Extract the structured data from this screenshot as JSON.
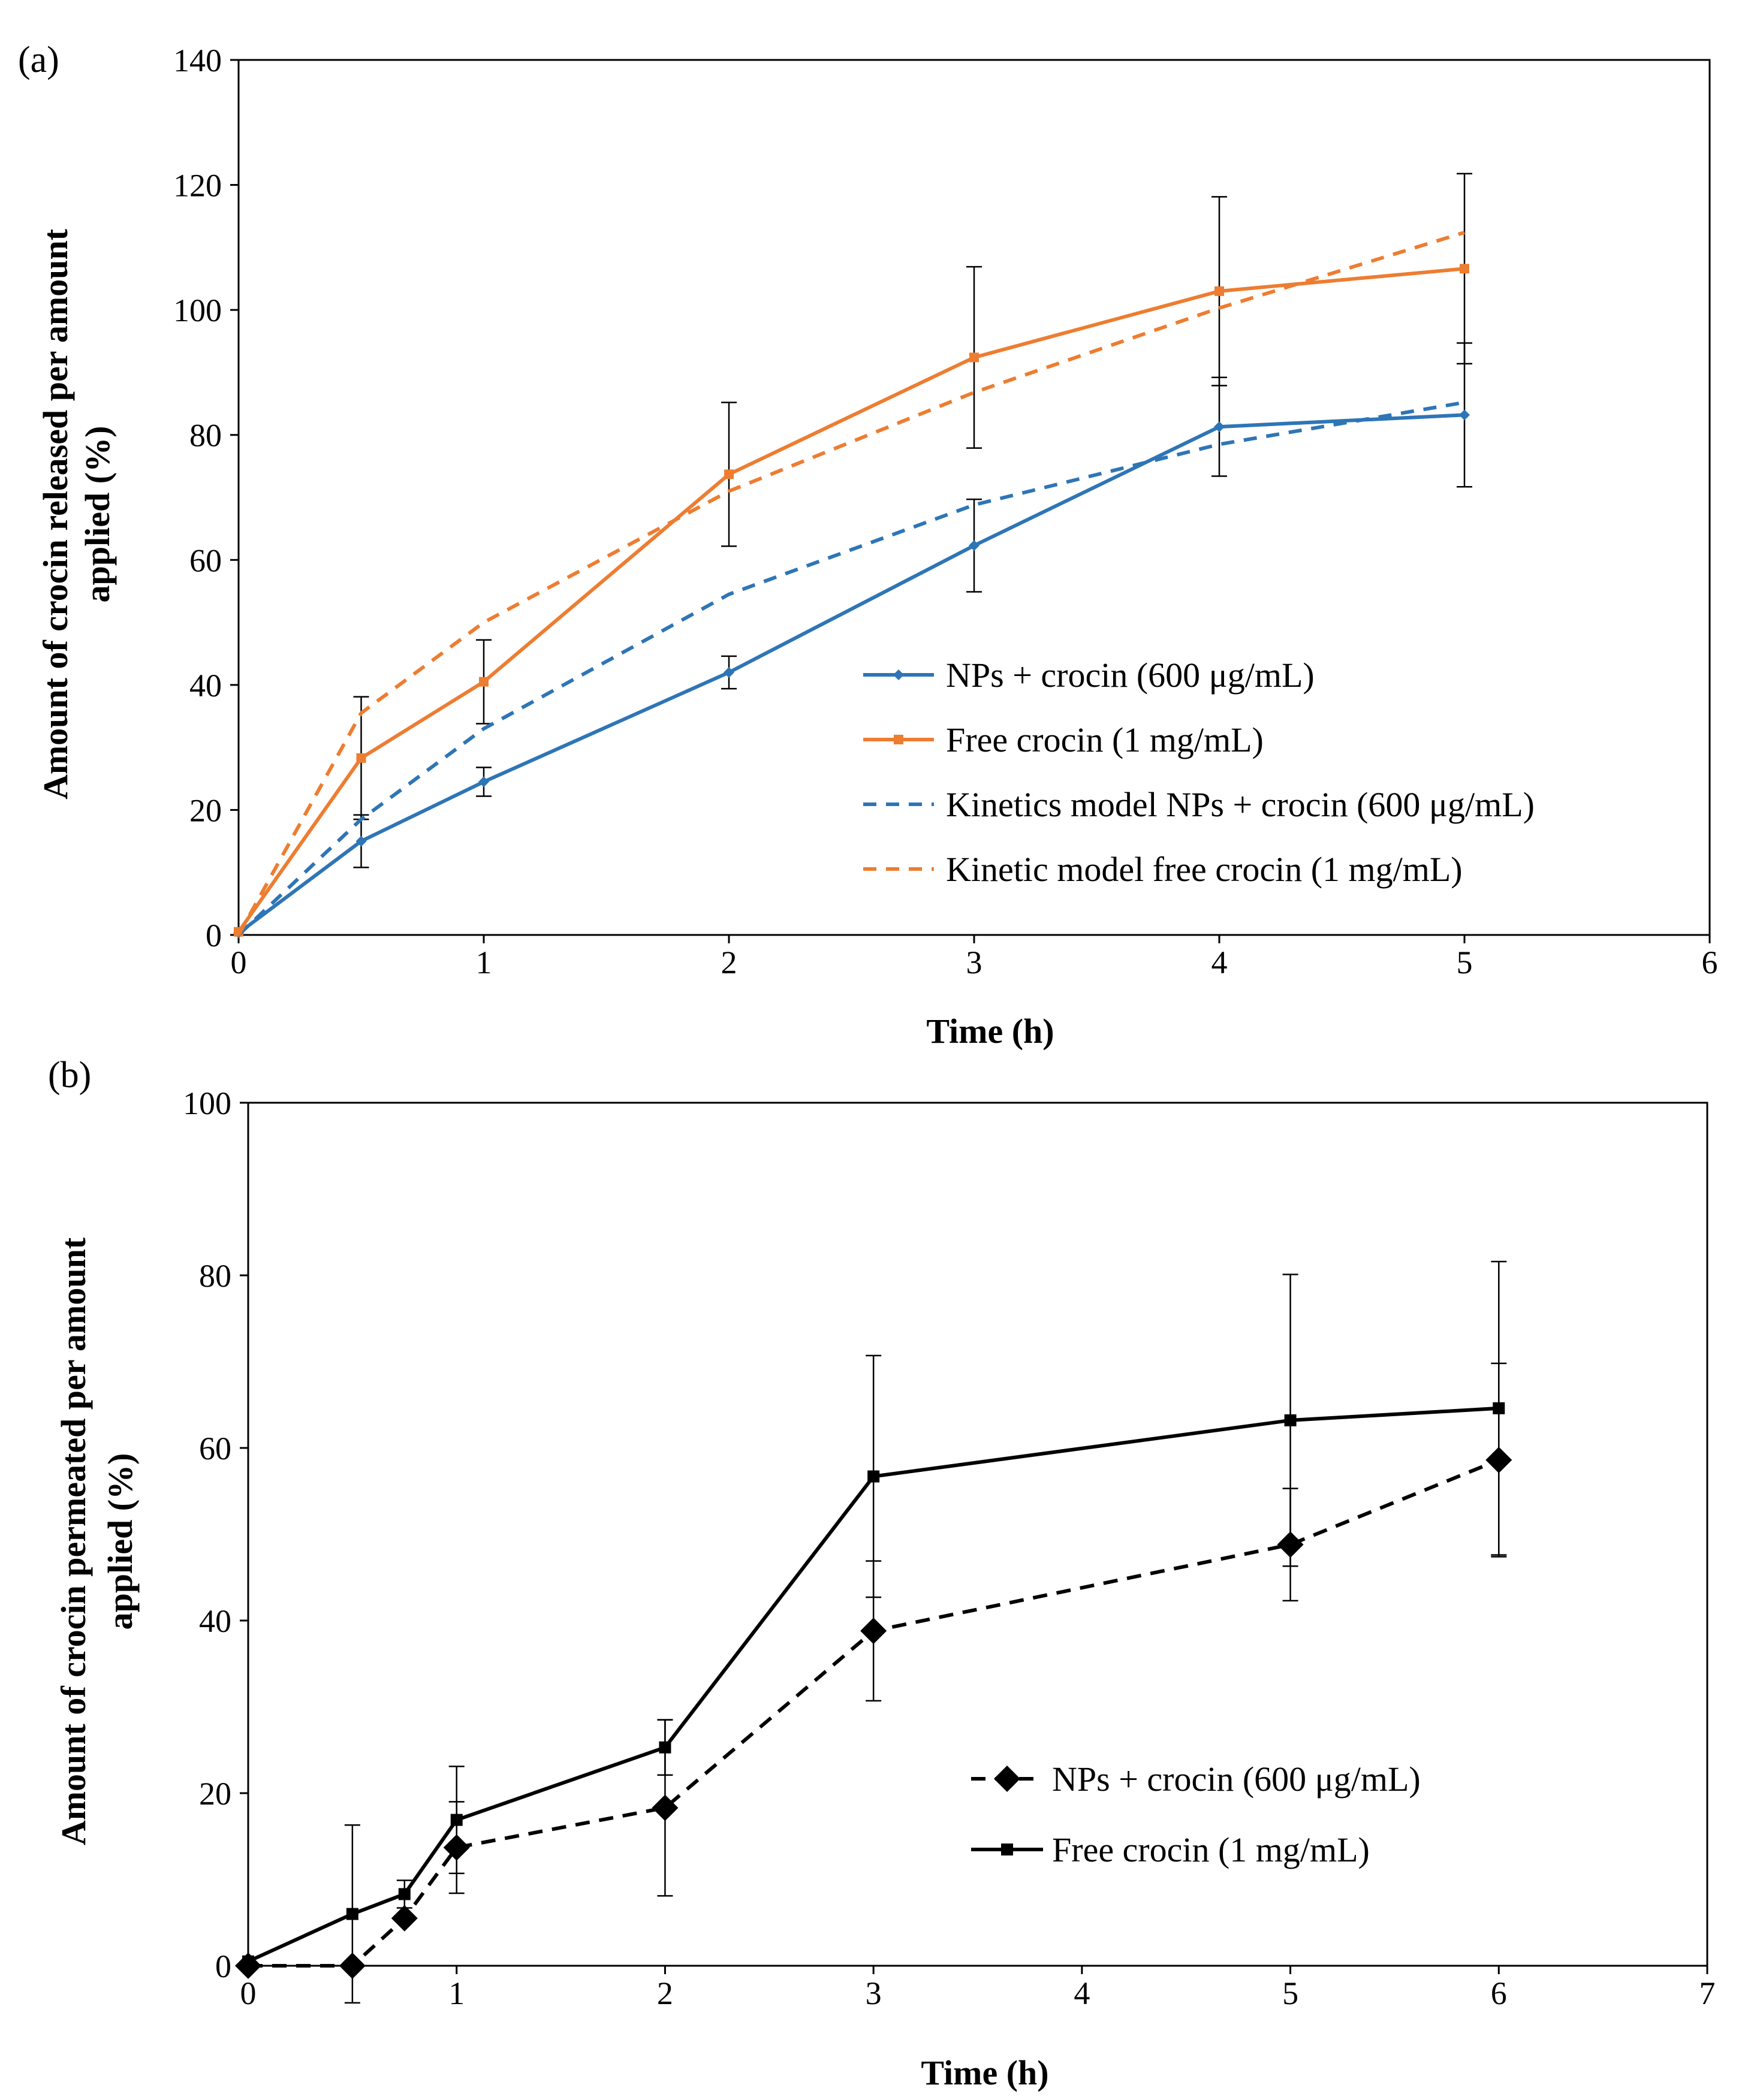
{
  "chart_data": [
    {
      "panel_label": "(a)",
      "type": "line",
      "xlabel": "Time (h)",
      "ylabel_lines": [
        "Amount of crocin released per amount",
        "applied (%)"
      ],
      "xlim": [
        0,
        6
      ],
      "ylim": [
        0,
        140
      ],
      "xticks": [
        0,
        1,
        2,
        3,
        4,
        5,
        6
      ],
      "yticks": [
        0,
        20,
        40,
        60,
        80,
        100,
        120,
        140
      ],
      "xtick_labels": [
        "0",
        "1",
        "2",
        "3",
        "4",
        "5",
        "6"
      ],
      "ytick_labels": [
        "0",
        "20",
        "40",
        "60",
        "80",
        "100",
        "120",
        "140"
      ],
      "legend_position": "lower-right",
      "series": [
        {
          "name": "NPs + crocin (600 μg/mL)",
          "color": "#2e75b6",
          "style": "solid",
          "marker": "diamond-small",
          "x": [
            0,
            0.5,
            1,
            2,
            3,
            4,
            5
          ],
          "y": [
            0.3,
            15,
            24.5,
            42,
            62.3,
            81.3,
            83.2
          ],
          "err": [
            0,
            4.2,
            2.3,
            2.6,
            7.4,
            7.9,
            11.5
          ]
        },
        {
          "name": "Free crocin (1 mg/mL)",
          "color": "#ed7d31",
          "style": "solid",
          "marker": "square-small",
          "x": [
            0,
            0.5,
            1,
            2,
            3,
            4,
            5
          ],
          "y": [
            0.5,
            28.3,
            40.5,
            73.7,
            92.4,
            103,
            106.6
          ],
          "err": [
            0,
            9.8,
            6.7,
            11.5,
            14.5,
            15.1,
            15.2
          ]
        },
        {
          "name": "Kinetics model NPs + crocin (600 μg/mL)",
          "color": "#2e75b6",
          "style": "dashed",
          "marker": "none",
          "x": [
            0,
            0.5,
            1,
            2,
            3,
            4,
            5
          ],
          "y": [
            0,
            18.5,
            33,
            54.5,
            68.8,
            78.5,
            85.2
          ],
          "err": []
        },
        {
          "name": "Kinetic model free crocin (1 mg/mL)",
          "color": "#ed7d31",
          "style": "dashed",
          "marker": "none",
          "x": [
            0,
            0.5,
            1,
            2,
            3,
            4,
            5
          ],
          "y": [
            0,
            35.5,
            50,
            71,
            86.8,
            100.3,
            112.4
          ],
          "err": []
        }
      ]
    },
    {
      "panel_label": "(b)",
      "type": "line",
      "xlabel": "Time (h)",
      "ylabel_lines": [
        "Amount of crocin permeated per amount",
        "applied (%)"
      ],
      "xlim": [
        0,
        7
      ],
      "ylim": [
        0,
        100
      ],
      "xticks": [
        0,
        1,
        2,
        3,
        4,
        5,
        6,
        7
      ],
      "yticks": [
        0,
        20,
        40,
        60,
        80,
        100
      ],
      "xtick_labels": [
        "0",
        "1",
        "2",
        "3",
        "4",
        "5",
        "6",
        "7"
      ],
      "ytick_labels": [
        "0",
        "20",
        "40",
        "60",
        "80",
        "100"
      ],
      "legend_position": "lower-right",
      "series": [
        {
          "name": "NPs + crocin (600 μg/mL)",
          "color": "#000000",
          "style": "dashed",
          "marker": "diamond-large",
          "x": [
            0,
            0.5,
            0.75,
            1,
            2,
            3,
            5,
            6
          ],
          "y": [
            0,
            0,
            5.5,
            13.7,
            18.3,
            38.8,
            48.8,
            58.6
          ],
          "err": [
            0,
            0,
            0,
            5.3,
            10.2,
            8.1,
            6.5,
            11.2
          ]
        },
        {
          "name": "Free crocin (1 mg/mL)",
          "color": "#000000",
          "style": "solid",
          "marker": "square-large",
          "x": [
            0,
            0.5,
            0.75,
            1,
            2,
            3,
            5,
            6
          ],
          "y": [
            0.5,
            6,
            8.3,
            16.9,
            25.3,
            56.7,
            63.2,
            64.6
          ],
          "err": [
            0,
            10.3,
            1.6,
            6.2,
            3.2,
            14,
            16.9,
            17
          ]
        }
      ]
    }
  ]
}
